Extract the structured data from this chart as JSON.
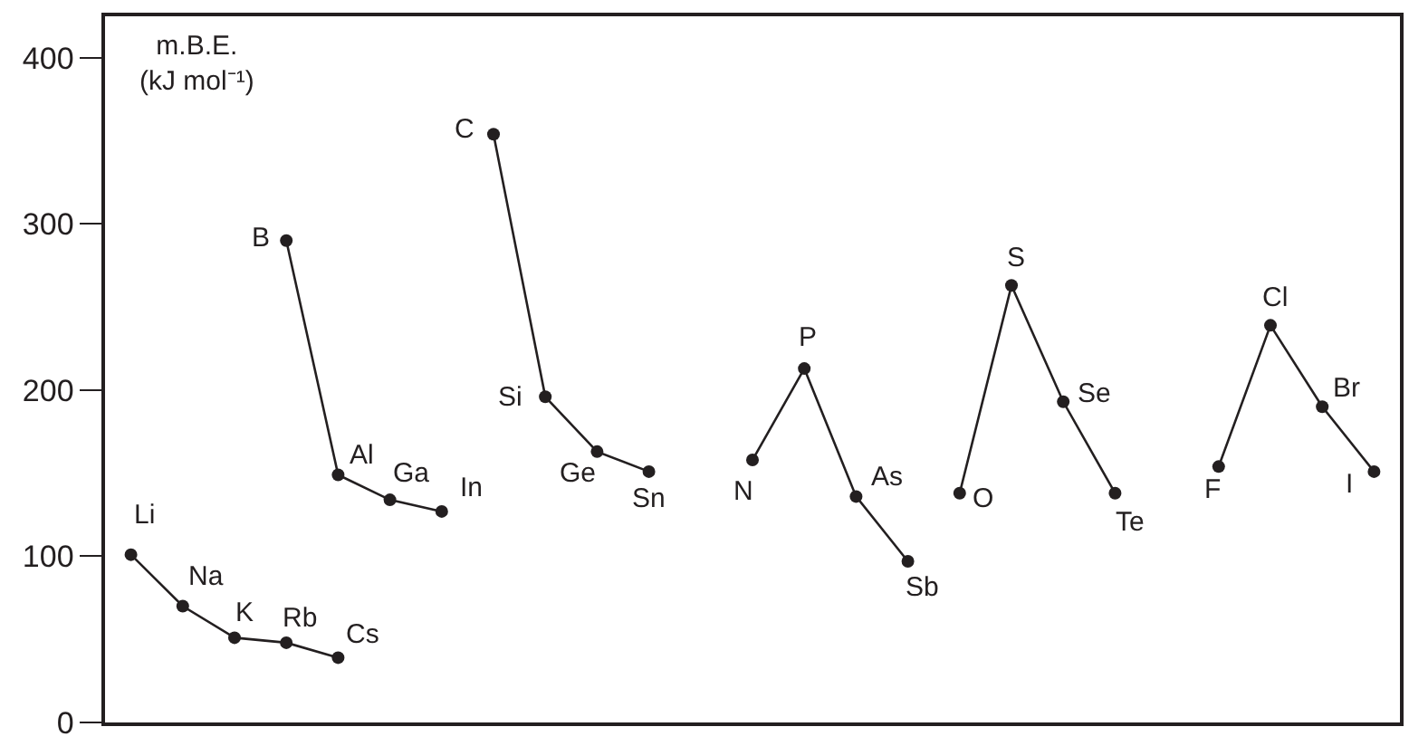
{
  "chart_data": {
    "type": "line",
    "ylabel": "m.B.E.\n(kJ mol⁻¹)",
    "ylim": [
      0,
      425
    ],
    "yticks": [
      0,
      100,
      200,
      300,
      400
    ],
    "tick_labels": "y",
    "marker": "circle",
    "line_style": "solid",
    "categories": [
      null,
      null,
      null,
      null,
      null,
      null,
      null,
      null,
      null,
      null,
      null,
      null,
      null,
      null,
      null,
      null,
      null,
      null,
      null,
      null,
      null,
      null,
      null,
      null,
      null
    ],
    "series": [
      {
        "color": "#231f20",
        "values": [
          101,
          70,
          51,
          48,
          39,
          null,
          null,
          null,
          null,
          null,
          null,
          null,
          null,
          null,
          null,
          null,
          null,
          null,
          null,
          null,
          null,
          null,
          null,
          null,
          null
        ],
        "value_labels": [
          "Li",
          "Na",
          "K",
          "Rb",
          "Cs",
          null,
          null,
          null,
          null,
          null,
          null,
          null,
          null,
          null,
          null,
          null,
          null,
          null,
          null,
          null,
          null,
          null,
          null,
          null,
          null
        ]
      },
      {
        "color": "#231f20",
        "values": [
          null,
          null,
          null,
          290,
          149,
          134,
          127,
          null,
          null,
          null,
          null,
          null,
          null,
          null,
          null,
          null,
          null,
          null,
          null,
          null,
          null,
          null,
          null,
          null,
          null
        ],
        "value_labels": [
          null,
          null,
          null,
          "B",
          "Al",
          "Ga",
          "In",
          null,
          null,
          null,
          null,
          null,
          null,
          null,
          null,
          null,
          null,
          null,
          null,
          null,
          null,
          null,
          null,
          null,
          null
        ]
      },
      {
        "color": "#231f20",
        "values": [
          null,
          null,
          null,
          null,
          null,
          null,
          null,
          354,
          196,
          163,
          151,
          null,
          null,
          null,
          null,
          null,
          null,
          null,
          null,
          null,
          null,
          null,
          null,
          null,
          null
        ],
        "value_labels": [
          null,
          null,
          null,
          null,
          null,
          null,
          null,
          "C",
          "Si",
          "Ge",
          "Sn",
          null,
          null,
          null,
          null,
          null,
          null,
          null,
          null,
          null,
          null,
          null,
          null,
          null,
          null
        ]
      },
      {
        "color": "#231f20",
        "values": [
          null,
          null,
          null,
          null,
          null,
          null,
          null,
          null,
          null,
          null,
          null,
          null,
          158,
          213,
          136,
          97,
          null,
          null,
          null,
          null,
          null,
          null,
          null,
          null,
          null
        ],
        "value_labels": [
          null,
          null,
          null,
          null,
          null,
          null,
          null,
          null,
          null,
          null,
          null,
          null,
          "N",
          "P",
          "As",
          "Sb",
          null,
          null,
          null,
          null,
          null,
          null,
          null,
          null,
          null
        ]
      },
      {
        "color": "#231f20",
        "values": [
          null,
          null,
          null,
          null,
          null,
          null,
          null,
          null,
          null,
          null,
          null,
          null,
          null,
          null,
          null,
          null,
          138,
          263,
          193,
          138,
          null,
          null,
          null,
          null,
          null
        ],
        "value_labels": [
          null,
          null,
          null,
          null,
          null,
          null,
          null,
          null,
          null,
          null,
          null,
          null,
          null,
          null,
          null,
          null,
          "O",
          "S",
          "Se",
          "Te",
          null,
          null,
          null,
          null,
          null
        ]
      },
      {
        "color": "#231f20",
        "values": [
          null,
          null,
          null,
          null,
          null,
          null,
          null,
          null,
          null,
          null,
          null,
          null,
          null,
          null,
          null,
          null,
          null,
          null,
          null,
          null,
          null,
          154,
          239,
          190,
          151
        ],
        "value_labels": [
          null,
          null,
          null,
          null,
          null,
          null,
          null,
          null,
          null,
          null,
          null,
          null,
          null,
          null,
          null,
          null,
          null,
          null,
          null,
          null,
          null,
          "F",
          "Cl",
          "Br",
          "I"
        ]
      }
    ]
  }
}
